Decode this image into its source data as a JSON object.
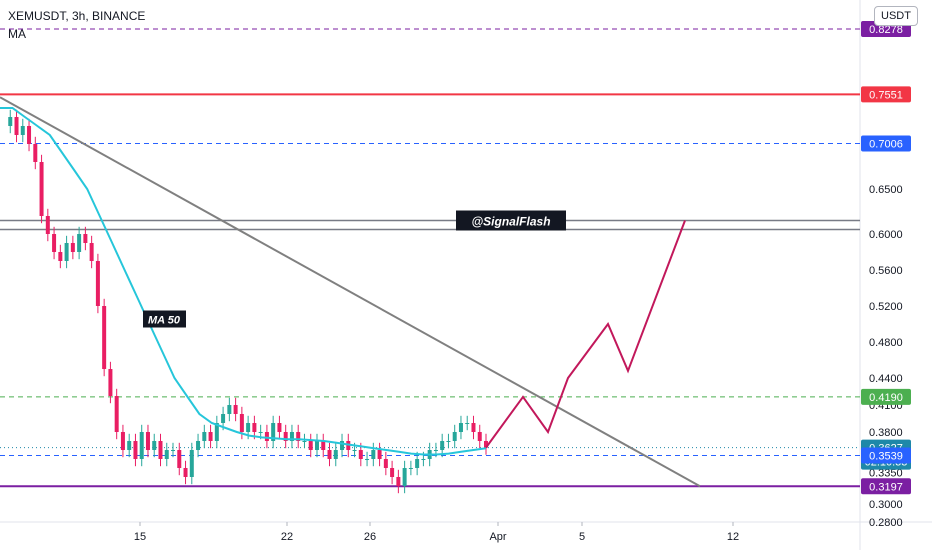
{
  "header": {
    "symbol": "XEMUSDT, 3h, BINANCE",
    "indicator": "MA",
    "currency": "USDT"
  },
  "colors": {
    "price_up": "#26a69a",
    "candle": "#e91e63",
    "ma": "#26c6da",
    "trendline": "#808080",
    "support": "#7b1fa2",
    "resistance_red": "#f23645",
    "level_blue": "#2962ff",
    "level_green": "#4caf50",
    "projection": "#c2185b",
    "current_price": "#1e88a8"
  },
  "chart_data": {
    "type": "candlestick",
    "title": "XEMUSDT, 3h, BINANCE",
    "ylim": [
      0.28,
      0.86
    ],
    "x_ticks": [
      "15",
      "22",
      "26",
      "Apr",
      "5",
      "12"
    ],
    "y_ticks": [
      "0.2800",
      "0.3000",
      "0.3350",
      "0.3800",
      "0.4100",
      "0.4400",
      "0.4800",
      "0.5200",
      "0.5600",
      "0.6000",
      "0.6500"
    ],
    "price_labels": [
      {
        "label": "0.8278",
        "value": 0.8278,
        "color": "#7b1fa2",
        "style": "dashed"
      },
      {
        "label": "0.7551",
        "value": 0.7551,
        "color": "#f23645",
        "style": "solid"
      },
      {
        "label": "0.7006",
        "value": 0.7006,
        "color": "#2962ff",
        "style": "dashed"
      },
      {
        "label": "0.4190",
        "value": 0.419,
        "color": "#4caf50",
        "style": "dashed"
      },
      {
        "label": "0.3627",
        "sublabel": "02:10:33",
        "value": 0.3627,
        "color": "#1e88a8",
        "style": "dotted"
      },
      {
        "label": "0.3539",
        "value": 0.3539,
        "color": "#2962ff",
        "style": "dashed"
      },
      {
        "label": "0.3197",
        "value": 0.3197,
        "color": "#7b1fa2",
        "style": "solid"
      }
    ],
    "resistance_zone": {
      "values": [
        0.615,
        0.605
      ],
      "label": "@SignalFlash"
    },
    "ma": {
      "label": "MA 50",
      "period": 50
    },
    "price_series": [
      0.72,
      0.73,
      0.71,
      0.72,
      0.7,
      0.68,
      0.62,
      0.6,
      0.58,
      0.57,
      0.59,
      0.58,
      0.6,
      0.59,
      0.57,
      0.52,
      0.45,
      0.42,
      0.38,
      0.36,
      0.37,
      0.35,
      0.38,
      0.36,
      0.37,
      0.35,
      0.36,
      0.36,
      0.34,
      0.33,
      0.36,
      0.37,
      0.38,
      0.37,
      0.39,
      0.4,
      0.41,
      0.4,
      0.38,
      0.39,
      0.38,
      0.38,
      0.37,
      0.39,
      0.38,
      0.37,
      0.38,
      0.37,
      0.37,
      0.36,
      0.37,
      0.36,
      0.35,
      0.36,
      0.37,
      0.36,
      0.36,
      0.35,
      0.35,
      0.36,
      0.35,
      0.34,
      0.33,
      0.32,
      0.34,
      0.34,
      0.35,
      0.35,
      0.36,
      0.36,
      0.37,
      0.37,
      0.38,
      0.39,
      0.39,
      0.38,
      0.37,
      0.3627
    ],
    "ma_series": [
      0.74,
      0.74,
      0.73,
      0.72,
      0.71,
      0.69,
      0.67,
      0.65,
      0.62,
      0.59,
      0.56,
      0.53,
      0.5,
      0.47,
      0.44,
      0.42,
      0.4,
      0.39,
      0.385,
      0.38,
      0.376,
      0.374,
      0.373,
      0.372,
      0.372,
      0.371,
      0.37,
      0.368,
      0.366,
      0.364,
      0.362,
      0.36,
      0.358,
      0.356,
      0.355,
      0.355,
      0.356,
      0.358,
      0.36,
      0.362
    ],
    "trendline": {
      "start": 0.752,
      "end": 0.3197
    },
    "projection": [
      0.3627,
      0.419,
      0.38,
      0.44,
      0.5,
      0.448,
      0.615
    ],
    "annotation_ma": "MA 50"
  }
}
